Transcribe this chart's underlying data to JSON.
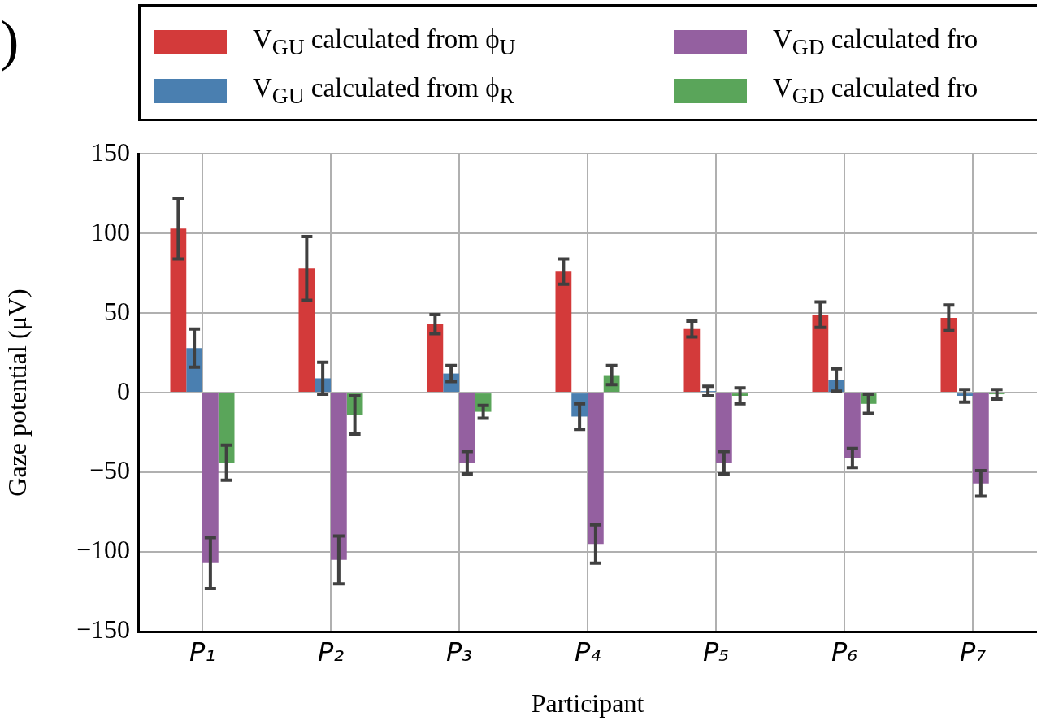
{
  "chart_data": {
    "type": "bar",
    "xlabel": "Participant",
    "ylabel": "Gaze potential (μV)",
    "annotations": [
      ")"
    ],
    "categories": [
      "P₁",
      "P₂",
      "P₃",
      "P₄",
      "P₅",
      "P₆",
      "P₇"
    ],
    "series": [
      {
        "name": "V$_{GU}$ calculated from ϕ$_{U}$",
        "color": "#d33a3a",
        "values": [
          103,
          78,
          43,
          76,
          40,
          49,
          47
        ],
        "errors": [
          19,
          20,
          6,
          8,
          5,
          8,
          8
        ]
      },
      {
        "name": "V$_{GU}$ calculated from ϕ$_{R}$",
        "color": "#4a7fb0",
        "values": [
          28,
          9,
          12,
          -15,
          1,
          8,
          -2
        ],
        "errors": [
          12,
          10,
          5,
          8,
          3,
          7,
          4
        ]
      },
      {
        "name": "V$_{GD}$ calculated fro",
        "color": "#9460a0",
        "values": [
          -107,
          -105,
          -44,
          -95,
          -44,
          -41,
          -57
        ],
        "errors": [
          16,
          15,
          7,
          12,
          7,
          6,
          8
        ]
      },
      {
        "name": "V$_{GD}$ calculated fro",
        "color": "#5aa55a",
        "values": [
          -44,
          -14,
          -12,
          11,
          -2,
          -7,
          -1
        ],
        "errors": [
          11,
          12,
          4,
          6,
          5,
          6,
          3
        ]
      }
    ],
    "ylim": [
      -150,
      150
    ],
    "yticks": [
      -150,
      -100,
      -50,
      0,
      50,
      100,
      150
    ],
    "grid": true,
    "legend": "top"
  }
}
